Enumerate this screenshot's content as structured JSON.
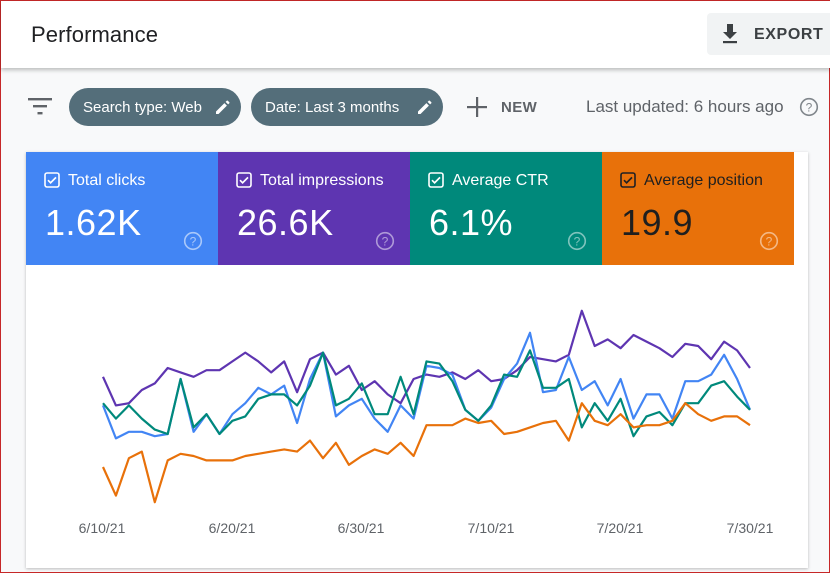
{
  "header": {
    "title": "Performance",
    "export_label": "EXPORT",
    "export_icon": "download-icon"
  },
  "filters": {
    "filter_icon": "filter-list-icon",
    "chips": [
      {
        "label": "Search type: Web",
        "icon": "edit-pencil-icon"
      },
      {
        "label": "Date: Last 3 months",
        "icon": "edit-pencil-icon"
      }
    ],
    "new_label": "NEW",
    "new_icon": "plus-icon",
    "last_updated": "Last updated: 6 hours ago",
    "help_icon": "help-circle-icon"
  },
  "metrics": [
    {
      "label": "Total clicks",
      "value": "1.62K",
      "checked": true,
      "color": "#4285f4"
    },
    {
      "label": "Total impressions",
      "value": "26.6K",
      "checked": true,
      "color": "#5e35b1"
    },
    {
      "label": "Average CTR",
      "value": "6.1%",
      "checked": true,
      "color": "#00897b"
    },
    {
      "label": "Average position",
      "value": "19.9",
      "checked": true,
      "color": "#e8710a"
    }
  ],
  "chart_data": {
    "type": "line",
    "title": "",
    "xlabel": "",
    "ylabel": "",
    "grid": false,
    "legend": "metric cards above chart",
    "x_tick_labels": [
      "6/10/21",
      "6/20/21",
      "6/30/21",
      "7/10/21",
      "7/20/21",
      "7/30/21"
    ],
    "x_start": "6/10/21",
    "x_end": "7/30/21",
    "value_note": "Relative plot heights (0-100) per day; chart has no y-axis, each series independently scaled",
    "series": [
      {
        "name": "Total impressions",
        "color": "#5e35b1",
        "values": [
          61,
          48,
          49,
          55,
          58,
          65,
          63,
          61,
          64,
          64,
          68,
          72,
          68,
          63,
          68,
          54,
          69,
          72,
          62,
          66,
          55,
          59,
          53,
          49,
          60,
          62,
          61,
          63,
          60,
          64,
          59,
          60,
          64,
          70,
          69,
          68,
          71,
          91,
          75,
          78,
          74,
          80,
          77,
          74,
          70,
          76,
          75,
          69,
          77,
          73,
          65
        ]
      },
      {
        "name": "Total clicks",
        "color": "#4285f4",
        "values": [
          48,
          33,
          36,
          36,
          34,
          35,
          60,
          36,
          44,
          35,
          44,
          49,
          56,
          53,
          57,
          40,
          60,
          72,
          43,
          48,
          51,
          42,
          36,
          48,
          42,
          66,
          65,
          62,
          46,
          41,
          47,
          60,
          67,
          81,
          54,
          55,
          70,
          55,
          59,
          48,
          60,
          42,
          53,
          53,
          42,
          59,
          59,
          62,
          71,
          60,
          46
        ]
      },
      {
        "name": "Average CTR",
        "color": "#00897b",
        "values": [
          49,
          42,
          48,
          42,
          37,
          35,
          60,
          38,
          44,
          35,
          41,
          43,
          51,
          53,
          53,
          48,
          57,
          72,
          48,
          51,
          58,
          44,
          44,
          61,
          44,
          68,
          67,
          59,
          46,
          41,
          48,
          62,
          61,
          73,
          56,
          56,
          60,
          38,
          49,
          41,
          51,
          34,
          43,
          45,
          39,
          49,
          49,
          57,
          59,
          52,
          46
        ]
      },
      {
        "name": "Average position",
        "color": "#e8710a",
        "values": [
          20,
          7,
          24,
          27,
          4,
          23,
          26,
          25,
          23,
          23,
          23,
          25,
          26,
          27,
          28,
          27,
          32,
          24,
          31,
          21,
          25,
          28,
          26,
          31,
          25,
          39,
          39,
          39,
          42,
          40,
          41,
          35,
          36,
          38,
          40,
          41,
          32,
          49,
          41,
          39,
          44,
          38,
          39,
          39,
          41,
          49,
          44,
          41,
          43,
          43,
          39
        ]
      }
    ]
  }
}
